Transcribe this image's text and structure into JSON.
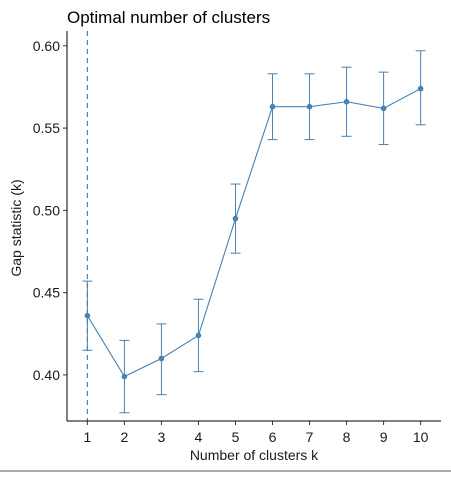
{
  "chart_data": {
    "type": "line",
    "title": "Optimal number of clusters",
    "xlabel": "Number of clusters k",
    "ylabel": "Gap statistic (k)",
    "x": [
      1,
      2,
      3,
      4,
      5,
      6,
      7,
      8,
      9,
      10
    ],
    "xlim": [
      0.45,
      10.55
    ],
    "ylim": [
      0.372,
      0.609
    ],
    "y_ticks": [
      "0.40",
      "0.45",
      "0.50",
      "0.55",
      "0.60"
    ],
    "x_ticks": [
      "1",
      "2",
      "3",
      "4",
      "5",
      "6",
      "7",
      "8",
      "9",
      "10"
    ],
    "series": [
      {
        "values": [
          0.436,
          0.399,
          0.41,
          0.424,
          0.495,
          0.563,
          0.563,
          0.566,
          0.562,
          0.574
        ],
        "error_low": [
          0.415,
          0.377,
          0.388,
          0.402,
          0.474,
          0.543,
          0.543,
          0.545,
          0.54,
          0.552
        ],
        "error_high": [
          0.457,
          0.421,
          0.431,
          0.446,
          0.516,
          0.583,
          0.583,
          0.587,
          0.584,
          0.597
        ],
        "color": "#4682B4"
      }
    ],
    "optimal_k": 1,
    "reference_line_style": "dashed vertical",
    "grid": false,
    "colors": {
      "series": "#4682B4",
      "axis": "#000000",
      "text": "#1a1a1a"
    }
  }
}
